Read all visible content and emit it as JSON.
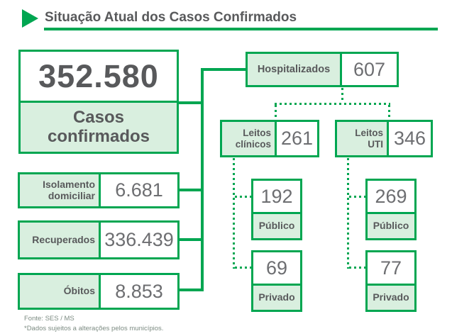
{
  "title": {
    "text": "Situação Atual dos Casos Confirmados"
  },
  "colors": {
    "green": "#00a651",
    "light_green": "#d9efdf",
    "dark_text": "#58595b",
    "num_text": "#6d6e71",
    "footer_text": "#7c8b82"
  },
  "main_stat": {
    "value": "352.580",
    "label": "Casos confirmados"
  },
  "left_stats": [
    {
      "label": "Isolamento domiciliar",
      "value": "6.681"
    },
    {
      "label": "Recuperados",
      "value": "336.439"
    },
    {
      "label": "Óbitos",
      "value": "8.853"
    }
  ],
  "hospitalized": {
    "label": "Hospitalizados",
    "value": "607"
  },
  "beds": [
    {
      "label": "Leitos clínicos",
      "value": "261",
      "breakdown": [
        {
          "value": "192",
          "label": "Público"
        },
        {
          "value": "69",
          "label": "Privado"
        }
      ]
    },
    {
      "label": "Leitos UTI",
      "value": "346",
      "breakdown": [
        {
          "value": "269",
          "label": "Público"
        },
        {
          "value": "77",
          "label": "Privado"
        }
      ]
    }
  ],
  "footer": {
    "source": "Fonte: SES / MS",
    "note": "*Dados sujeitos a alterações pelos municípios."
  }
}
